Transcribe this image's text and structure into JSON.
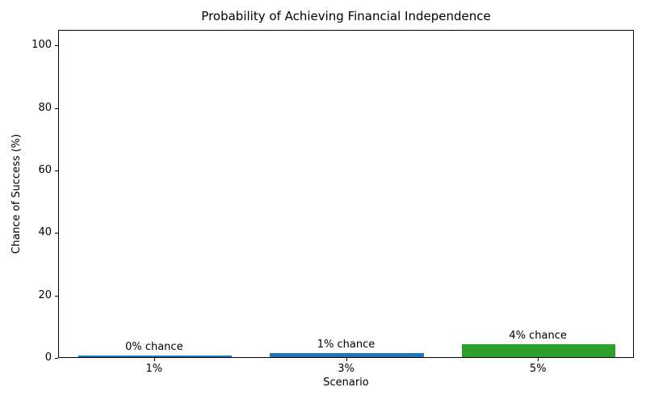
{
  "chart_data": {
    "type": "bar",
    "title": "Probability of Achieving Financial Independence",
    "xlabel": "Scenario",
    "ylabel": "Chance of Success (%)",
    "categories": [
      "1%",
      "3%",
      "5%"
    ],
    "values": [
      0.5,
      1.3,
      4.2
    ],
    "bar_labels": [
      "0% chance",
      "1% chance",
      "4% chance"
    ],
    "bar_colors": [
      "#1f77b4",
      "#1f77b4",
      "#2ca02c"
    ],
    "yticks": [
      0,
      20,
      40,
      60,
      80,
      100
    ],
    "ylim": [
      0,
      105
    ],
    "bar_width_frac": 0.8,
    "grid": false,
    "legend_position": "none",
    "frame": "full-box",
    "background_color": "#ffffff",
    "text_color": "#000000"
  }
}
